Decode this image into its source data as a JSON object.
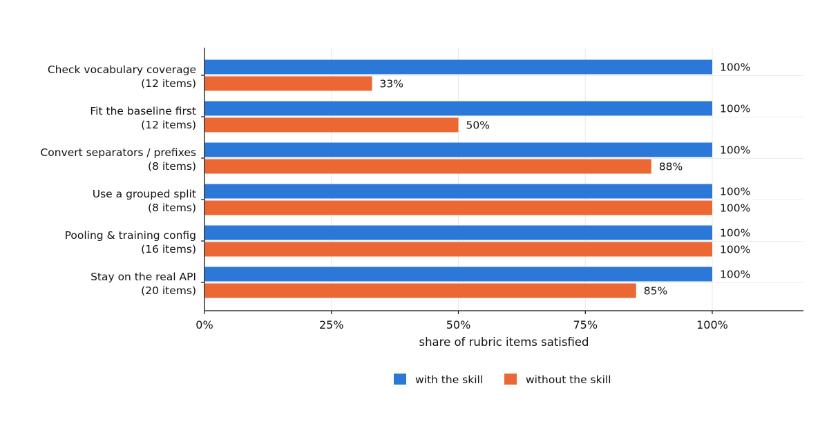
{
  "chart_data": {
    "type": "bar",
    "orientation": "horizontal",
    "categories": [
      [
        "Check vocabulary coverage",
        "(12 items)"
      ],
      [
        "Fit the baseline first",
        "(12 items)"
      ],
      [
        "Convert separators / prefixes",
        "(8 items)"
      ],
      [
        "Use a grouped split",
        "(8 items)"
      ],
      [
        "Pooling & training config",
        "(16 items)"
      ],
      [
        "Stay on the real API",
        "(20 items)"
      ]
    ],
    "series": [
      {
        "name": "with the skill",
        "color": "#2b78d8",
        "values": [
          100,
          100,
          100,
          100,
          100,
          100
        ],
        "labels": [
          "100%",
          "100%",
          "100%",
          "100%",
          "100%",
          "100%"
        ]
      },
      {
        "name": "without the skill",
        "color": "#eb6834",
        "values": [
          33,
          50,
          88,
          100,
          100,
          85
        ],
        "labels": [
          "33%",
          "50%",
          "88%",
          "100%",
          "100%",
          "85%"
        ]
      }
    ],
    "xlabel": "share of rubric items satisfied",
    "ylabel": "",
    "title": "",
    "xlim": [
      0,
      118
    ],
    "xticks": [
      0,
      25,
      50,
      75,
      100
    ],
    "xtick_labels": [
      "0%",
      "25%",
      "50%",
      "75%",
      "100%"
    ],
    "grid": "vertical",
    "legend_position": "bottom-center"
  }
}
